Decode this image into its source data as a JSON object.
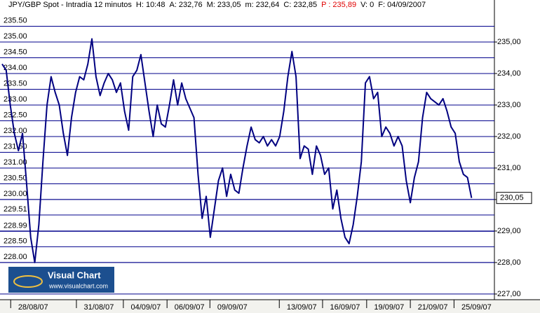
{
  "header": {
    "text": "JPY/GBP Spot - Intradía 12 minutos",
    "fields": [
      "H: 10:48",
      "A: 232,76",
      "M: 233,05",
      "m: 232,64",
      "C: 232,85",
      "P : 235,89",
      "V: 0",
      "F: 04/09/2007"
    ]
  },
  "watermark": {
    "title": "Visual Chart",
    "url": "www.visualchart.com"
  },
  "chart_data": {
    "type": "line",
    "color": "#000080",
    "values": [
      234.3,
      234.1,
      233.0,
      232.1,
      231.55,
      232.1,
      230.5,
      228.8,
      228.0,
      229.2,
      231.2,
      233.0,
      233.9,
      233.4,
      233.0,
      232.1,
      231.4,
      232.6,
      233.4,
      233.9,
      233.8,
      234.3,
      235.1,
      233.9,
      233.3,
      233.7,
      234.0,
      233.8,
      233.4,
      233.7,
      232.8,
      232.2,
      233.9,
      234.1,
      234.6,
      233.7,
      232.8,
      232.0,
      233.0,
      232.4,
      232.3,
      233.0,
      233.8,
      233.0,
      233.7,
      233.2,
      232.9,
      232.6,
      230.8,
      229.4,
      230.1,
      228.8,
      229.7,
      230.6,
      231.0,
      230.1,
      230.8,
      230.3,
      230.2,
      231.0,
      231.7,
      232.3,
      231.9,
      231.8,
      232.0,
      231.7,
      231.9,
      231.7,
      232.0,
      232.8,
      233.9,
      234.7,
      233.9,
      231.3,
      231.7,
      231.6,
      230.8,
      231.7,
      231.4,
      230.8,
      231.0,
      229.7,
      230.3,
      229.4,
      228.8,
      228.6,
      229.2,
      230.1,
      231.2,
      233.7,
      233.9,
      233.2,
      233.4,
      232.0,
      232.3,
      232.1,
      231.7,
      232.0,
      231.7,
      230.6,
      229.9,
      230.7,
      231.2,
      232.6,
      233.4,
      233.2,
      233.1,
      233.0,
      233.2,
      232.8,
      232.3,
      232.1,
      231.2,
      230.8,
      230.7,
      230.05
    ],
    "xlim": [
      0,
      120.6
    ],
    "xticks": [
      {
        "value": 7.6,
        "label": "28/08/07"
      },
      {
        "value": 23.7,
        "label": "31/08/07"
      },
      {
        "value": 35.2,
        "label": "04/09/07"
      },
      {
        "value": 45.9,
        "label": "06/09/07"
      },
      {
        "value": 56.4,
        "label": "09/09/07"
      },
      {
        "value": 73.4,
        "label": "13/09/07"
      },
      {
        "value": 84.0,
        "label": "16/09/07"
      },
      {
        "value": 94.8,
        "label": "19/09/07"
      },
      {
        "value": 105.5,
        "label": "21/09/07"
      },
      {
        "value": 116.2,
        "label": "25/09/07"
      }
    ],
    "ylim": [
      226.82,
      236.0
    ],
    "yticks": [
      {
        "value": 227,
        "label": "227,00"
      },
      {
        "value": 228,
        "label": "228,00"
      },
      {
        "value": 229,
        "label": "229,00"
      },
      {
        "value": 230,
        "label": "230,00"
      },
      {
        "value": 231,
        "label": "231,00"
      },
      {
        "value": 232,
        "label": "232,00"
      },
      {
        "value": 233,
        "label": "233,00"
      },
      {
        "value": 234,
        "label": "234,00"
      },
      {
        "value": 235,
        "label": "235,00"
      }
    ],
    "yticks_left": [
      {
        "value": 235.5,
        "label": "235.50"
      },
      {
        "value": 235,
        "label": "235.00"
      },
      {
        "value": 234.5,
        "label": "234.50"
      },
      {
        "value": 234,
        "label": "234.00"
      },
      {
        "value": 233.5,
        "label": "233.50"
      },
      {
        "value": 233,
        "label": "233.00"
      },
      {
        "value": 232.5,
        "label": "232.50"
      },
      {
        "value": 232,
        "label": "232.00"
      },
      {
        "value": 231.5,
        "label": "231.50"
      },
      {
        "value": 231,
        "label": "231.00"
      },
      {
        "value": 230.5,
        "label": "230.50"
      },
      {
        "value": 230,
        "label": "230.00"
      },
      {
        "value": 229.51,
        "label": "229.51"
      },
      {
        "value": 228.99,
        "label": "228.99"
      },
      {
        "value": 228.5,
        "label": "228.50"
      },
      {
        "value": 228,
        "label": "228.00"
      }
    ],
    "last_price": {
      "value": 230.05,
      "label": "230,05"
    },
    "grid": true
  }
}
